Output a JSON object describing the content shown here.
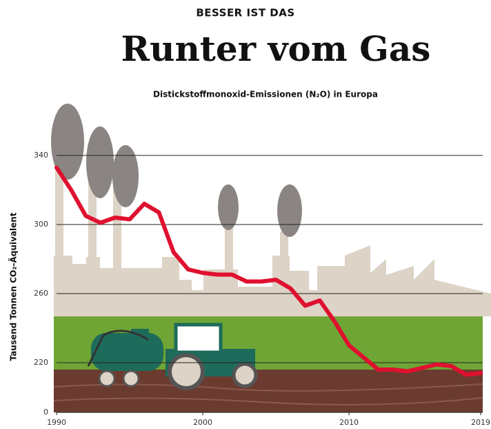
{
  "chart_data": {
    "type": "line",
    "kicker": "BESSER IST DAS",
    "title": "Runter vom Gas",
    "subtitle": "Distickstoffmonoxid-Emissionen (N₂O) in Europa",
    "y_label": "Tausend Tonnen CO₂-Äquivalent",
    "x": [
      1990,
      1991,
      1992,
      1993,
      1994,
      1995,
      1996,
      1997,
      1998,
      1999,
      2000,
      2001,
      2002,
      2003,
      2004,
      2005,
      2006,
      2007,
      2008,
      2009,
      2010,
      2011,
      2012,
      2013,
      2014,
      2015,
      2016,
      2017,
      2018,
      2019
    ],
    "series": [
      {
        "color": "#e0102f",
        "values": [
          333,
          320,
          305,
          301,
          304,
          303,
          312,
          307,
          284,
          274,
          272,
          271,
          271,
          267,
          267,
          268,
          263,
          253,
          256,
          244,
          230,
          223,
          216,
          216,
          215,
          217,
          219,
          218,
          213,
          214
        ]
      }
    ],
    "xlim": [
      1990,
      2019
    ],
    "xticks": [
      1990,
      2000,
      2010,
      2019
    ],
    "ylim": [
      0,
      340
    ],
    "yticks": [
      0,
      220,
      260,
      300,
      340
    ],
    "y_axis_break": true,
    "grid": true
  }
}
